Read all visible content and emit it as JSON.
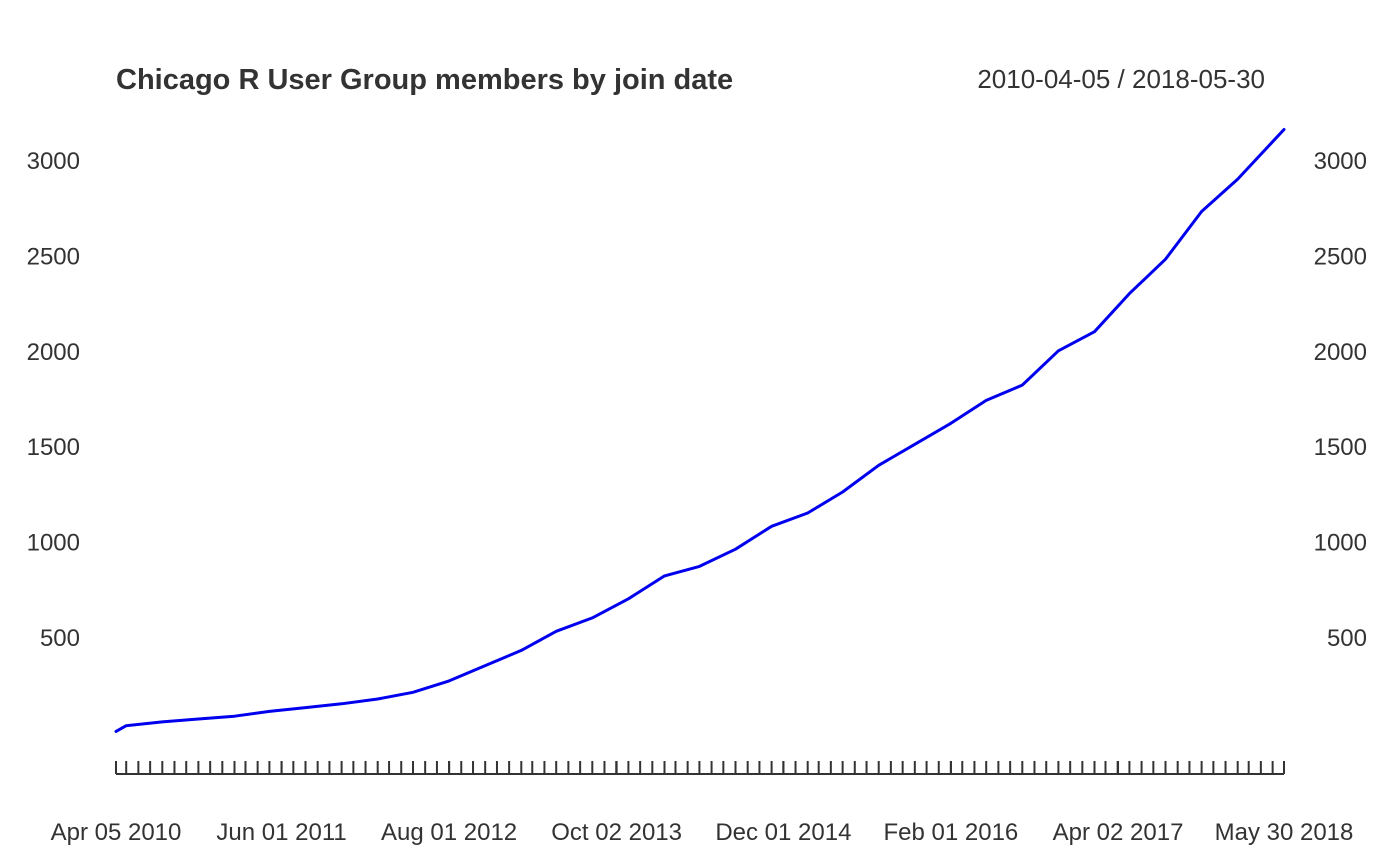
{
  "chart_data": {
    "type": "line",
    "title": "Chicago R User Group members by join date",
    "subtitle": "2010-04-05 / 2018-05-30",
    "xlabel": "",
    "ylabel": "",
    "x_range": [
      "2010-04-05",
      "2018-05-30"
    ],
    "ylim": [
      -200,
      3200
    ],
    "y_ticks": [
      500,
      1000,
      1500,
      2000,
      2500,
      3000
    ],
    "y_tick_labels": [
      "500",
      "1000",
      "1500",
      "2000",
      "2500",
      "3000"
    ],
    "x_major_ticks": [
      {
        "date": "2010-04-05",
        "label": "Apr 05 2010"
      },
      {
        "date": "2011-06-01",
        "label": "Jun 01 2011"
      },
      {
        "date": "2012-08-01",
        "label": "Aug 01 2012"
      },
      {
        "date": "2013-10-02",
        "label": "Oct 02 2013"
      },
      {
        "date": "2014-12-01",
        "label": "Dec 01 2014"
      },
      {
        "date": "2016-02-01",
        "label": "Feb 01 2016"
      },
      {
        "date": "2017-04-02",
        "label": "Apr 02 2017"
      },
      {
        "date": "2018-05-30",
        "label": "May 30 2018"
      }
    ],
    "minor_ticks": "monthly",
    "grid": false,
    "legend": "none",
    "series": [
      {
        "color": "#0000ee",
        "x": [
          "2010-04-05",
          "2010-05-01",
          "2010-08-01",
          "2010-11-01",
          "2011-02-01",
          "2011-05-01",
          "2011-08-01",
          "2011-11-01",
          "2012-02-01",
          "2012-05-01",
          "2012-08-01",
          "2012-11-01",
          "2013-02-01",
          "2013-05-01",
          "2013-08-01",
          "2013-11-01",
          "2014-02-01",
          "2014-05-01",
          "2014-08-01",
          "2014-11-01",
          "2015-02-01",
          "2015-05-01",
          "2015-08-01",
          "2015-11-01",
          "2016-02-01",
          "2016-05-01",
          "2016-08-01",
          "2016-11-01",
          "2017-02-01",
          "2017-05-01",
          "2017-08-01",
          "2017-11-01",
          "2018-02-01",
          "2018-05-30"
        ],
        "y": [
          5,
          35,
          55,
          70,
          85,
          110,
          130,
          150,
          175,
          210,
          270,
          350,
          430,
          530,
          600,
          700,
          820,
          870,
          960,
          1080,
          1150,
          1260,
          1400,
          1510,
          1620,
          1740,
          1820,
          2000,
          2100,
          2300,
          2480,
          2730,
          2900,
          3160
        ]
      }
    ]
  }
}
